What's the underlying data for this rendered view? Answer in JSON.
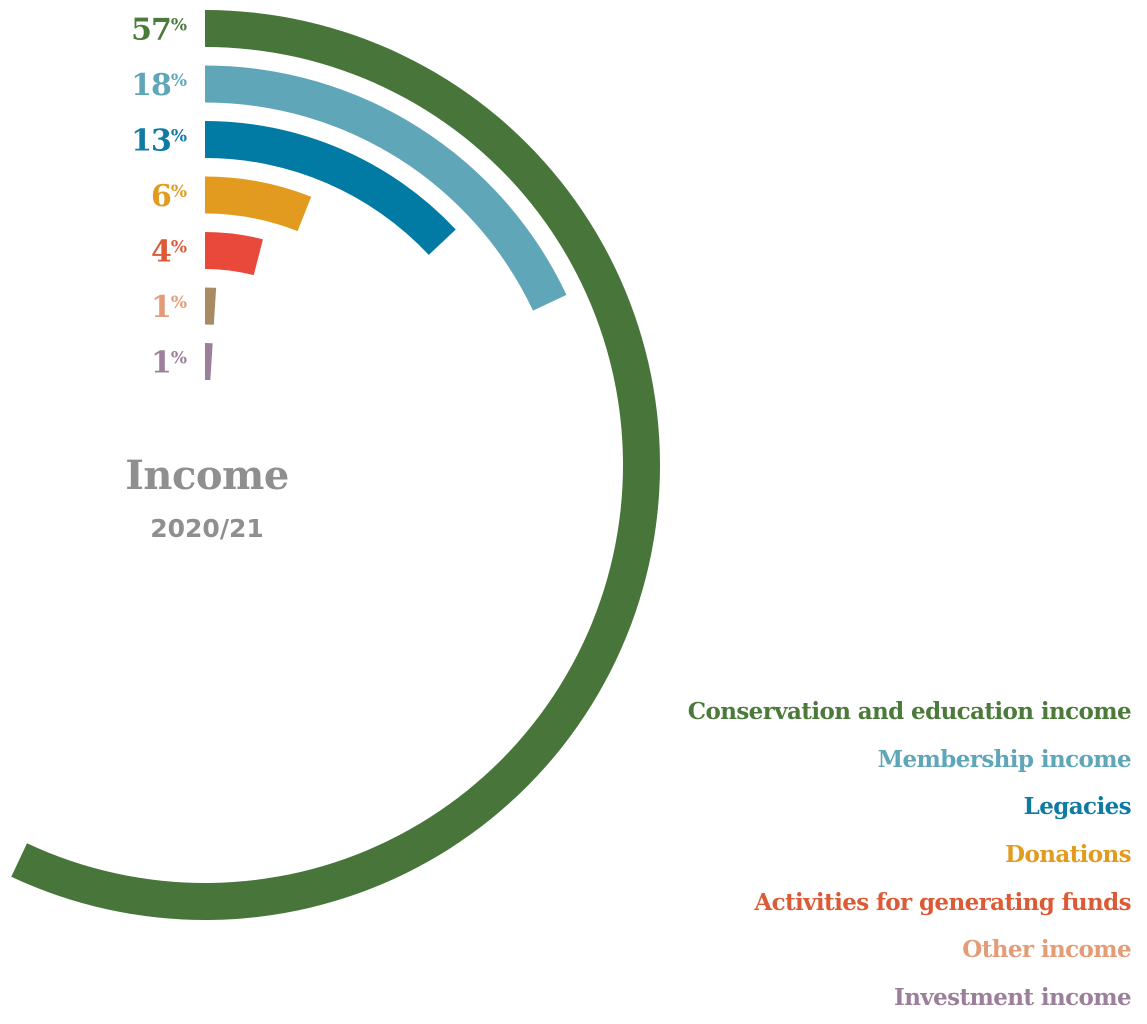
{
  "chart_data": {
    "type": "radial-bar",
    "title": "Income",
    "subtitle": "2020/21",
    "unit": "%",
    "series": [
      {
        "name": "Conservation and education income",
        "value": 57,
        "color": "#47753a"
      },
      {
        "name": "Membership income",
        "value": 18,
        "color": "#5fa6b8"
      },
      {
        "name": "Legacies",
        "value": 13,
        "color": "#017aa4"
      },
      {
        "name": "Donations",
        "value": 6,
        "color": "#e29b1e"
      },
      {
        "name": "Activities for generating funds",
        "value": 4,
        "color": "#e9493a"
      },
      {
        "name": "Other income",
        "value": 1,
        "color": "#a88b63"
      },
      {
        "name": "Investment income",
        "value": 1,
        "color": "#9c7f9a"
      }
    ],
    "legend_text_colors": [
      "#4b7a3a",
      "#5fa6b8",
      "#0f7aa3",
      "#e29b1e",
      "#dc5b37",
      "#e39b78",
      "#9c7f9a"
    ],
    "label_text_colors": [
      "#4b7a3a",
      "#5fa6b8",
      "#0f7aa3",
      "#e29b1e",
      "#dc5b37",
      "#e39b78",
      "#9c7f9a"
    ],
    "legend_position": "bottom-right"
  }
}
